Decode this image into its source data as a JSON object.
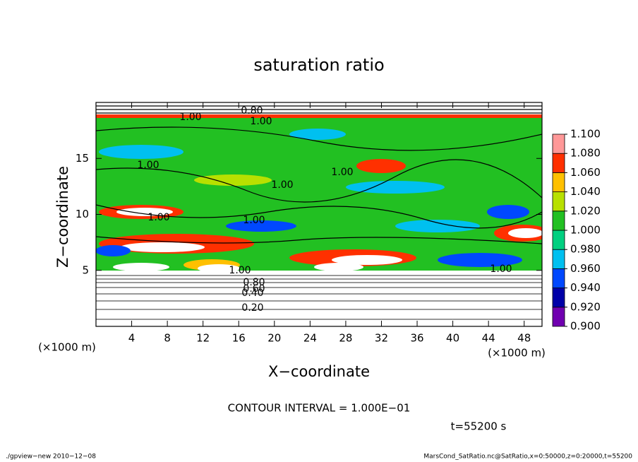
{
  "chart_data": {
    "type": "contour",
    "title": "saturation ratio",
    "x_label": "X−coordinate",
    "y_label": "Z−coordinate",
    "x_unit_label": "(×1000 m)",
    "y_unit_label": "(×1000 m)",
    "xlim": [
      0,
      50
    ],
    "ylim": [
      0,
      20
    ],
    "xticks": [
      4,
      8,
      12,
      16,
      20,
      24,
      28,
      32,
      36,
      40,
      44,
      48
    ],
    "yticks": [
      5,
      10,
      15
    ],
    "colorbar": {
      "ticks": [
        {
          "value": 0.9,
          "label": "0.900"
        },
        {
          "value": 0.92,
          "label": "0.920"
        },
        {
          "value": 0.94,
          "label": "0.940"
        },
        {
          "value": 0.96,
          "label": "0.960"
        },
        {
          "value": 0.98,
          "label": "0.980"
        },
        {
          "value": 1.0,
          "label": "1.000"
        },
        {
          "value": 1.02,
          "label": "1.020"
        },
        {
          "value": 1.04,
          "label": "1.040"
        },
        {
          "value": 1.06,
          "label": "1.060"
        },
        {
          "value": 1.08,
          "label": "1.080"
        },
        {
          "value": 1.1,
          "label": "1.100"
        }
      ],
      "colors": [
        "#7000b0",
        "#0000a8",
        "#0048ff",
        "#00c0f0",
        "#00d080",
        "#22c022",
        "#b8e000",
        "#ffc000",
        "#ff3000",
        "#ff9898"
      ]
    },
    "contour_labels": [
      "1.00",
      "0.80",
      "1.00",
      "1.00",
      "1.00",
      "1.00",
      "1.00",
      "1.00",
      "1.00",
      "0.80",
      "0.60",
      "0.40",
      "0.20",
      "1.00"
    ],
    "contour_interval": "CONTOUR INTERVAL = 1.000E−01",
    "time_label": "t=55200 s",
    "footer_left": "./gpview−new   2010−12−08",
    "footer_right": "MarsCond_SatRatio.nc@SatRatio,x=0:50000,z=0:20000,t=55200"
  }
}
